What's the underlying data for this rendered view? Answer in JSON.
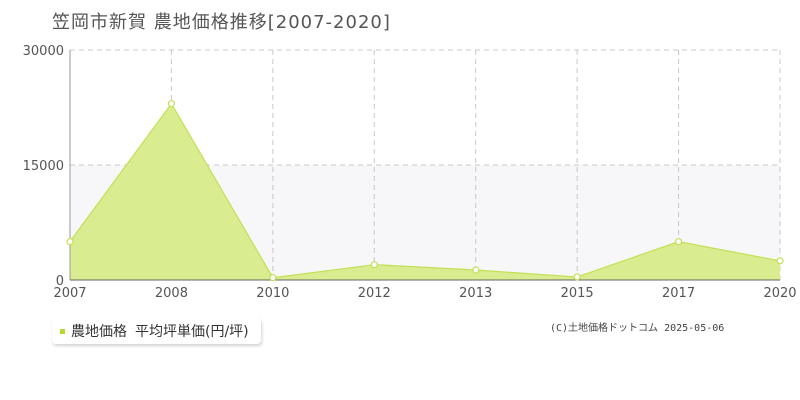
{
  "title": "笠岡市新賀  農地価格推移[2007-2020]",
  "legend": {
    "series_name": "農地価格",
    "unit_label": "平均坪単価(円/坪)"
  },
  "copyright": "(C)土地価格ドットコム 2025-05-06",
  "colors": {
    "area_fill": "#d9ec8f",
    "line": "#c2e055",
    "point_fill": "#ffffff",
    "band": "#f7f7f9",
    "grid": "#c8c8c8",
    "axis": "#999999",
    "legend_marker": "#b4d932"
  },
  "chart_data": {
    "type": "area",
    "x": [
      "2007",
      "2008",
      "2010",
      "2012",
      "2013",
      "2015",
      "2017",
      "2020"
    ],
    "series": [
      {
        "name": "農地価格",
        "values": [
          5000,
          23000,
          300,
          2000,
          1300,
          400,
          5000,
          2500
        ]
      }
    ],
    "ylim": [
      0,
      30000
    ],
    "yticks": [
      "0",
      "15000",
      "30000"
    ],
    "grid": true,
    "legend_position": "bottom-left"
  }
}
